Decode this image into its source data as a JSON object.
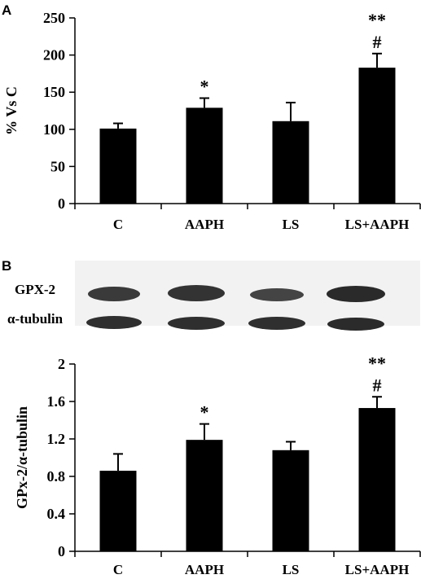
{
  "chart_data": [
    {
      "panel": "A",
      "type": "bar",
      "categories": [
        "C",
        "AAPH",
        "LS",
        "LS+AAPH"
      ],
      "values": [
        101,
        129,
        111,
        183
      ],
      "errors": [
        7,
        13,
        25,
        19
      ],
      "ylabel": "% Vs C",
      "ylim": [
        0,
        250
      ],
      "yticks": [
        "0",
        "50",
        "100",
        "150",
        "200",
        "250"
      ],
      "annotations": [
        {
          "category": "AAPH",
          "lines": [
            "*"
          ]
        },
        {
          "category": "LS+AAPH",
          "lines": [
            "**",
            "#"
          ]
        }
      ],
      "bar_color": "#000000",
      "grid": false
    },
    {
      "panel": "B",
      "type": "bar",
      "categories": [
        "C",
        "AAPH",
        "LS",
        "LS+AAPH"
      ],
      "values": [
        0.86,
        1.19,
        1.08,
        1.53
      ],
      "errors": [
        0.18,
        0.17,
        0.09,
        0.12
      ],
      "ylabel": "GPx-2/α-tubulin",
      "ylim": [
        0,
        2
      ],
      "yticks": [
        "0",
        "0.4",
        "0.8",
        "1.2",
        "1.6",
        "2"
      ],
      "annotations": [
        {
          "category": "AAPH",
          "lines": [
            "*"
          ]
        },
        {
          "category": "LS+AAPH",
          "lines": [
            "**",
            "#"
          ]
        }
      ],
      "bar_color": "#000000",
      "grid": false
    }
  ],
  "blot": {
    "rows": [
      {
        "label": "GPX-2"
      },
      {
        "label": "α-tubulin"
      }
    ]
  }
}
